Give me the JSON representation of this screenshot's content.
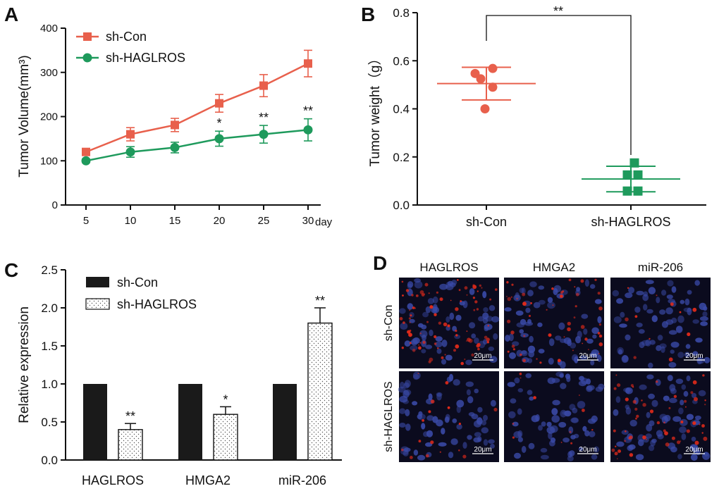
{
  "colors": {
    "con_line": "#e8604c",
    "hag_line": "#1e9a5c",
    "con_scatter": "#e8604c",
    "hag_scatter": "#1e9a5c",
    "bar_con": "#1a1a1a",
    "bar_hag": "#ffffff",
    "micro_bg": "#0b0b1e",
    "micro_nuclei": "#3a4aa8",
    "micro_red": "#e02a1a"
  },
  "panels": {
    "A": "A",
    "B": "B",
    "C": "C",
    "D": "D"
  },
  "chart_data": [
    {
      "panel": "A",
      "type": "line",
      "ylabel": "Tumor Volume(mm³)",
      "x_unit": "day",
      "x": [
        5,
        10,
        15,
        20,
        25,
        30
      ],
      "x_tick_labels": [
        "5",
        "10",
        "15",
        "20",
        "25",
        "30"
      ],
      "ylim": [
        0,
        400
      ],
      "y_ticks": [
        0,
        100,
        200,
        300,
        400
      ],
      "y_tick_labels": [
        "0",
        "100",
        "200",
        "300",
        "400"
      ],
      "legend": [
        "sh-Con",
        "sh-HAGLROS"
      ],
      "series": [
        {
          "name": "sh-Con",
          "marker": "square",
          "values": [
            120,
            160,
            181,
            230,
            270,
            320
          ],
          "errors": [
            5,
            15,
            15,
            20,
            25,
            30
          ]
        },
        {
          "name": "sh-HAGLROS",
          "marker": "circle",
          "values": [
            100,
            120,
            130,
            150,
            160,
            170
          ],
          "errors": [
            4,
            12,
            12,
            17,
            20,
            25
          ]
        }
      ],
      "significance": [
        {
          "x": 20,
          "label": "*"
        },
        {
          "x": 25,
          "label": "**"
        },
        {
          "x": 30,
          "label": "**"
        }
      ]
    },
    {
      "panel": "B",
      "type": "scatter",
      "ylabel": "Tumor weight（g）",
      "categories": [
        "sh-Con",
        "sh-HAGLROS"
      ],
      "ylim": [
        0,
        0.8
      ],
      "y_ticks": [
        0,
        0.2,
        0.4,
        0.6,
        0.8
      ],
      "y_tick_labels": [
        "0.0",
        "0.2",
        "0.4",
        "0.6",
        "0.8"
      ],
      "groups": [
        {
          "name": "sh-Con",
          "marker": "circle",
          "points": [
            0.547,
            0.525,
            0.568,
            0.49,
            0.4
          ],
          "mean": 0.505,
          "sd": 0.068
        },
        {
          "name": "sh-HAGLROS",
          "marker": "square",
          "points": [
            0.175,
            0.125,
            0.125,
            0.058,
            0.058
          ],
          "mean": 0.108,
          "sd": 0.053
        }
      ],
      "significance": "**"
    },
    {
      "panel": "C",
      "type": "bar",
      "ylabel": "Relative expression",
      "categories": [
        "HAGLROS",
        "HMGA2",
        "miR-206"
      ],
      "ylim": [
        0,
        2.5
      ],
      "y_ticks": [
        0,
        0.5,
        1.0,
        1.5,
        2.0,
        2.5
      ],
      "y_tick_labels": [
        "0.0",
        "0.5",
        "1.0",
        "1.5",
        "2.0",
        "2.5"
      ],
      "legend": [
        "sh-Con",
        "sh-HAGLROS"
      ],
      "series": [
        {
          "name": "sh-Con",
          "values": [
            1.0,
            1.0,
            1.0
          ],
          "errors": [
            0,
            0,
            0
          ]
        },
        {
          "name": "sh-HAGLROS",
          "values": [
            0.4,
            0.6,
            1.8
          ],
          "errors": [
            0.08,
            0.1,
            0.2
          ]
        }
      ],
      "significance": [
        "**",
        "*",
        "**"
      ]
    }
  ],
  "micrographs": {
    "columns": [
      "HAGLROS",
      "HMGA2",
      "miR-206"
    ],
    "rows": [
      "sh-Con",
      "sh-HAGLROS"
    ],
    "scale_bar": "20μm",
    "red_level": [
      [
        0.9,
        0.55,
        0.12
      ],
      [
        0.18,
        0.12,
        0.6
      ]
    ]
  }
}
